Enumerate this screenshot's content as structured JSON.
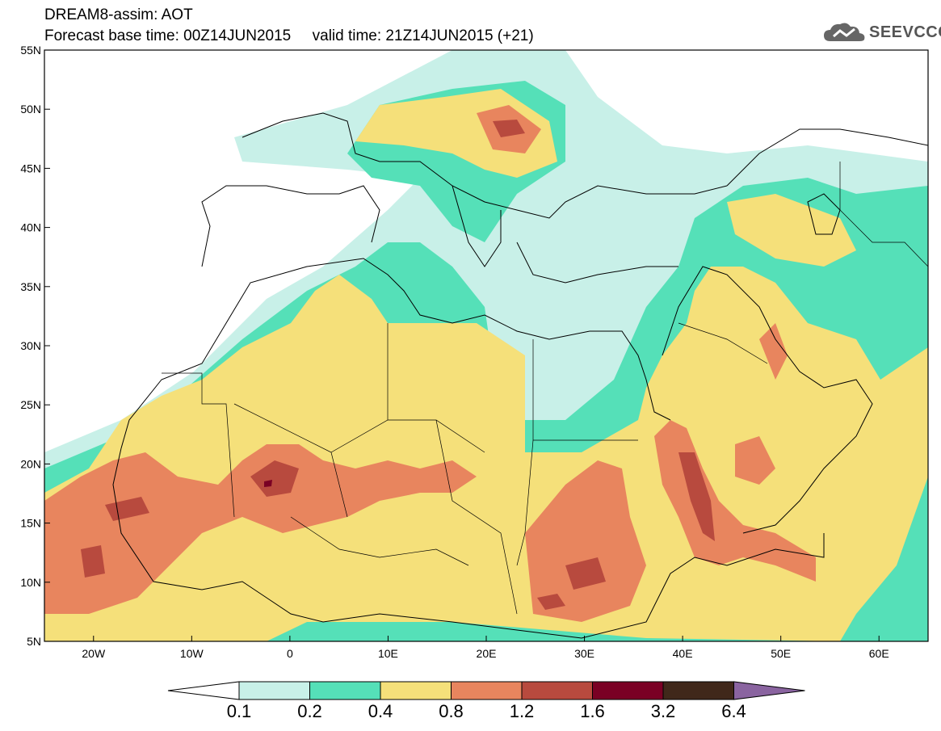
{
  "header": {
    "line1": "DREAM8-assim: AOT",
    "base_label": "Forecast base time: 00Z14JUN2015",
    "valid_label": "valid time: 21Z14JUN2015 (+21)"
  },
  "logo": {
    "text": "SEEVCCC",
    "icon": "cloud-icon"
  },
  "map": {
    "lat_labels": [
      "55N",
      "50N",
      "45N",
      "40N",
      "35N",
      "30N",
      "25N",
      "20N",
      "15N",
      "10N",
      "5N"
    ],
    "lon_labels": [
      "20W",
      "10W",
      "0",
      "10E",
      "20E",
      "30E",
      "40E",
      "50E",
      "60E"
    ],
    "lon_range": [
      -25,
      65
    ],
    "lat_range": [
      5,
      55
    ],
    "basemap": "coastlines and country borders (Europe, North Africa, Middle East)"
  },
  "colorbar": {
    "labels": [
      "0.1",
      "0.2",
      "0.4",
      "0.8",
      "1.2",
      "1.6",
      "3.2",
      "6.4"
    ],
    "colors": [
      "#ffffff",
      "#c8f0e8",
      "#55e0b8",
      "#f5e07a",
      "#e8855e",
      "#b84a3e",
      "#7a0024",
      "#40281a",
      "#8a64a0"
    ]
  }
}
